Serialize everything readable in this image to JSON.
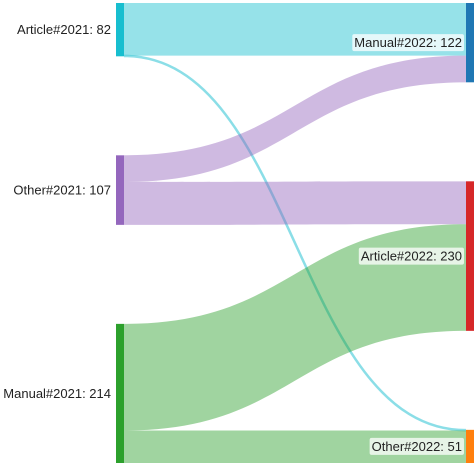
{
  "chart_data": {
    "type": "sankey",
    "nodes": [
      {
        "id": "a21",
        "label": "Article#2021: 82",
        "value": 82,
        "color": "#17becf",
        "column": 0
      },
      {
        "id": "o21",
        "label": "Other#2021: 107",
        "value": 107,
        "color": "#9467bd",
        "column": 0
      },
      {
        "id": "m21",
        "label": "Manual#2021: 214",
        "value": 214,
        "color": "#2ca02c",
        "column": 0
      },
      {
        "id": "m22",
        "label": "Manual#2022: 122",
        "value": 122,
        "color": "#1f77b4",
        "column": 1
      },
      {
        "id": "a22",
        "label": "Article#2022: 230",
        "value": 230,
        "color": "#d62728",
        "column": 1
      },
      {
        "id": "o22",
        "label": "Other#2022: 51",
        "value": 51,
        "color": "#ff7f0e",
        "column": 1
      }
    ],
    "links": [
      {
        "source": "a21",
        "target": "m22",
        "value": 81
      },
      {
        "source": "a21",
        "target": "o22",
        "value": 1
      },
      {
        "source": "o21",
        "target": "m22",
        "value": 41
      },
      {
        "source": "o21",
        "target": "a22",
        "value": 66
      },
      {
        "source": "m21",
        "target": "a22",
        "value": 164
      },
      {
        "source": "m21",
        "target": "o22",
        "value": 50
      }
    ]
  }
}
